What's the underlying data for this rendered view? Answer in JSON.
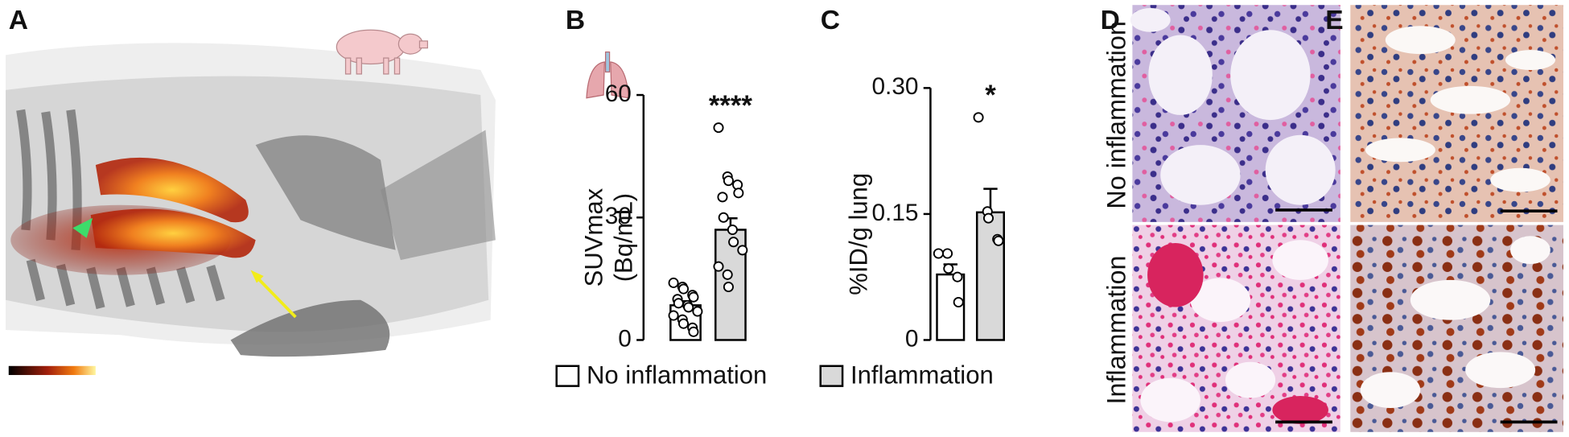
{
  "panel_labels": {
    "a": "A",
    "b": "B",
    "c": "C",
    "d": "D",
    "e": "E"
  },
  "histology": {
    "rows": [
      "No inflammation",
      "Inflammation"
    ]
  },
  "chart_data": [
    {
      "type": "bar",
      "y_label": [
        "SUVmax",
        "(Bq/mL)"
      ],
      "ylim": [
        0,
        60
      ],
      "yticks": [
        0,
        30,
        60
      ],
      "annotation": "****",
      "series": [
        {
          "name": "No inflammation",
          "color": "#ffffff",
          "value": 8.5,
          "error": 1.0,
          "points": [
            14,
            13,
            12.5,
            11,
            10.5,
            10,
            9,
            8.5,
            8,
            7,
            6,
            5,
            4,
            3,
            2
          ]
        },
        {
          "name": "Inflammation",
          "color": "#d9d9d9",
          "value": 27,
          "error": 2.8,
          "points": [
            52,
            40,
            39,
            38,
            36,
            35,
            30,
            27,
            24,
            22,
            18,
            16,
            13
          ]
        }
      ]
    },
    {
      "type": "bar",
      "y_label": [
        "%ID/g lung"
      ],
      "ylim": [
        0,
        0.3
      ],
      "yticks": [
        0,
        0.15,
        {
          "value": 0.3,
          "label": "0.30"
        }
      ],
      "annotation": "*",
      "series": [
        {
          "name": "No inflammation",
          "color": "#ffffff",
          "value": 0.078,
          "error": 0.012,
          "points": [
            0.103,
            0.103,
            0.085,
            0.075,
            0.045
          ]
        },
        {
          "name": "Inflammation",
          "color": "#d9d9d9",
          "value": 0.152,
          "error": 0.028,
          "points": [
            0.265,
            0.153,
            0.145,
            0.12,
            0.118
          ]
        }
      ]
    }
  ]
}
